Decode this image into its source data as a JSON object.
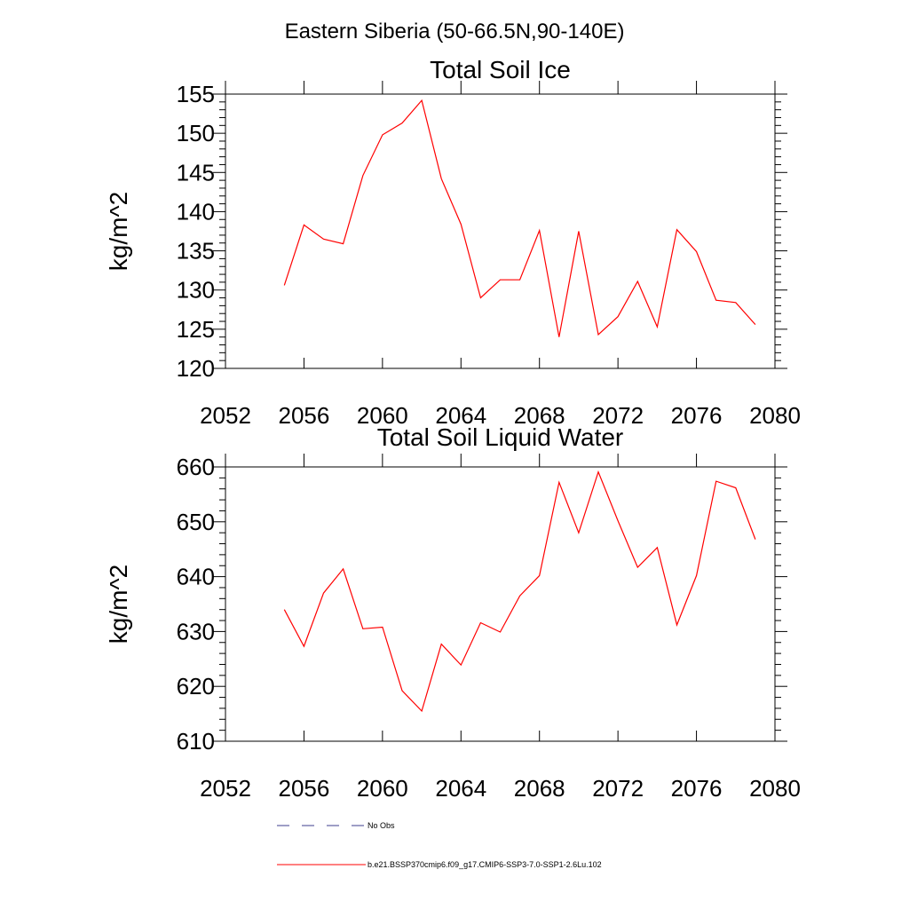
{
  "figure": {
    "title": "Eastern Siberia (50-66.5N,90-140E)"
  },
  "colors": {
    "series": "#ff0000",
    "obs": "#3c3c8c",
    "axis": "#000000"
  },
  "legend": {
    "placement": "bottom",
    "entries": [
      {
        "label": "No Obs",
        "style": "dashed",
        "color": "#3c3c8c"
      },
      {
        "label": "b.e21.BSSP370cmip6.f09_g17.CMIP6-SSP3-7.0-SSP1-2.6Lu.102",
        "style": "solid",
        "color": "#ff0000"
      }
    ]
  },
  "chart_data": [
    {
      "type": "line",
      "title": "Total Soil Ice",
      "xlabel": "",
      "ylabel": "kg/m^2",
      "xlim": [
        2052,
        2080
      ],
      "ylim": [
        120,
        155
      ],
      "xticks": [
        "2052",
        "2056",
        "2060",
        "2064",
        "2068",
        "2072",
        "2076",
        "2080"
      ],
      "yticks": [
        "120",
        "125",
        "130",
        "135",
        "140",
        "145",
        "150",
        "155"
      ],
      "grid": false,
      "x": [
        2055,
        2056,
        2057,
        2058,
        2059,
        2060,
        2061,
        2062,
        2063,
        2064,
        2065,
        2066,
        2067,
        2068,
        2069,
        2070,
        2071,
        2072,
        2073,
        2074,
        2075,
        2076,
        2077,
        2078,
        2079
      ],
      "series": [
        {
          "values": [
            130.6,
            138.3,
            136.5,
            135.9,
            144.6,
            149.8,
            151.3,
            154.2,
            144.2,
            138.4,
            129.0,
            131.3,
            131.3,
            137.6,
            124.0,
            137.5,
            124.3,
            126.6,
            131.1,
            125.3,
            137.7,
            134.9,
            128.7,
            128.4,
            125.6
          ]
        }
      ]
    },
    {
      "type": "line",
      "title": "Total Soil Liquid Water",
      "xlabel": "",
      "ylabel": "kg/m^2",
      "xlim": [
        2052,
        2080
      ],
      "ylim": [
        610,
        660
      ],
      "xticks": [
        "2052",
        "2056",
        "2060",
        "2064",
        "2068",
        "2072",
        "2076",
        "2080"
      ],
      "yticks": [
        "610",
        "620",
        "630",
        "640",
        "650",
        "660"
      ],
      "grid": false,
      "x": [
        2055,
        2056,
        2057,
        2058,
        2059,
        2060,
        2061,
        2062,
        2063,
        2064,
        2065,
        2066,
        2067,
        2068,
        2069,
        2070,
        2071,
        2072,
        2073,
        2074,
        2075,
        2076,
        2077,
        2078,
        2079
      ],
      "series": [
        {
          "values": [
            634.0,
            627.3,
            637.0,
            641.4,
            630.5,
            630.8,
            619.2,
            615.5,
            627.7,
            623.9,
            631.6,
            629.9,
            636.5,
            640.2,
            657.2,
            648.0,
            659.1,
            650.2,
            641.7,
            645.3,
            631.2,
            640.2,
            657.4,
            656.2,
            646.8
          ]
        }
      ]
    }
  ]
}
